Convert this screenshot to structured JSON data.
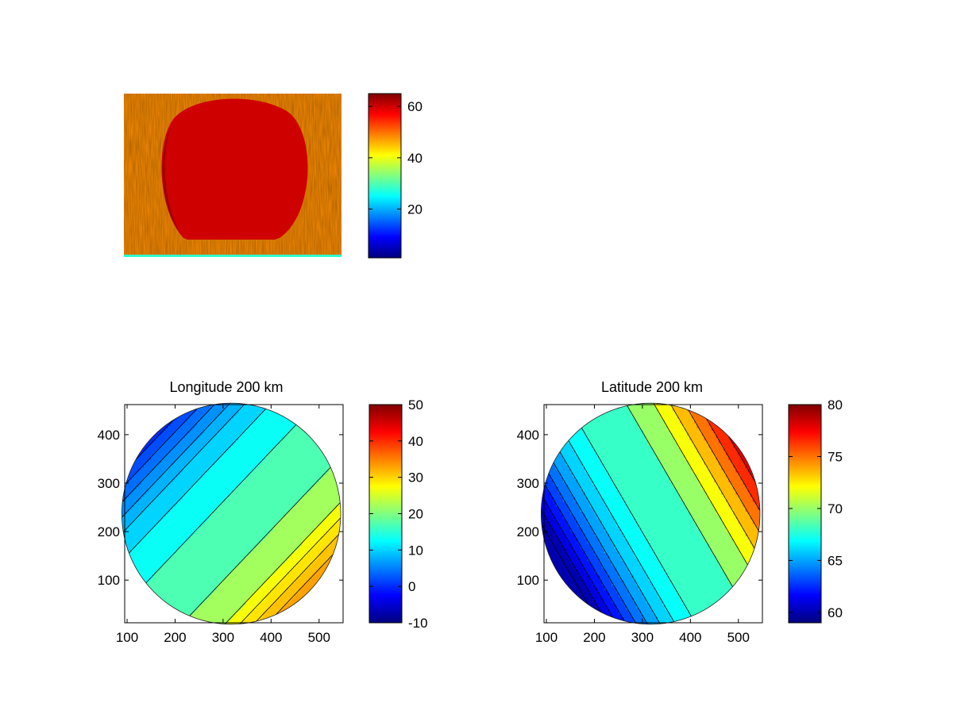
{
  "colors": {
    "background": "#ffffff",
    "axis": "#000000",
    "contour_line": "#000000",
    "colormap": "jet"
  },
  "chart_data": [
    {
      "id": "raw-image",
      "type": "heatmap",
      "title": "",
      "description_values": {
        "disk_level": 60,
        "background_level": 48,
        "bottom_strip_level": 28
      },
      "colorbar": {
        "ticks": [
          20,
          40,
          60
        ],
        "range": [
          1,
          65
        ],
        "colormap": "jet"
      },
      "axes_visible": false
    },
    {
      "id": "longitude",
      "type": "heatmap",
      "title": "Longitude 200 km",
      "xlim": [
        95,
        550
      ],
      "ylim": [
        12,
        462
      ],
      "xticks": [
        100,
        200,
        300,
        400,
        500
      ],
      "yticks": [
        100,
        200,
        300,
        400
      ],
      "disk": {
        "cx": 317,
        "cy": 237,
        "r": 228
      },
      "field": {
        "gradient_direction": "lower-right",
        "min_value": -10,
        "max_value": 35
      },
      "contour_levels": [
        -8,
        -6,
        -4,
        -2,
        0,
        2,
        4,
        6,
        8,
        10,
        13,
        17,
        22,
        27,
        29,
        31,
        33
      ],
      "colorbar": {
        "ticks": [
          -10,
          0,
          10,
          20,
          30,
          40,
          50
        ],
        "range": [
          -10,
          50
        ],
        "colormap": "jet"
      }
    },
    {
      "id": "latitude",
      "type": "heatmap",
      "title": "Latitude 200 km",
      "xlim": [
        95,
        550
      ],
      "ylim": [
        12,
        462
      ],
      "xticks": [
        100,
        200,
        300,
        400,
        500
      ],
      "yticks": [
        100,
        200,
        300,
        400
      ],
      "disk": {
        "cx": 317,
        "cy": 237,
        "r": 228
      },
      "field": {
        "gradient_direction": "right",
        "min_value": 59,
        "max_value": 80
      },
      "contour_levels": [
        60,
        61,
        62,
        63,
        64,
        65,
        66,
        67,
        68,
        70,
        72,
        73.5,
        75,
        76.5,
        78,
        79.5
      ],
      "colorbar": {
        "ticks": [
          60,
          65,
          70,
          75,
          80
        ],
        "range": [
          59,
          80
        ],
        "colormap": "jet"
      }
    }
  ]
}
